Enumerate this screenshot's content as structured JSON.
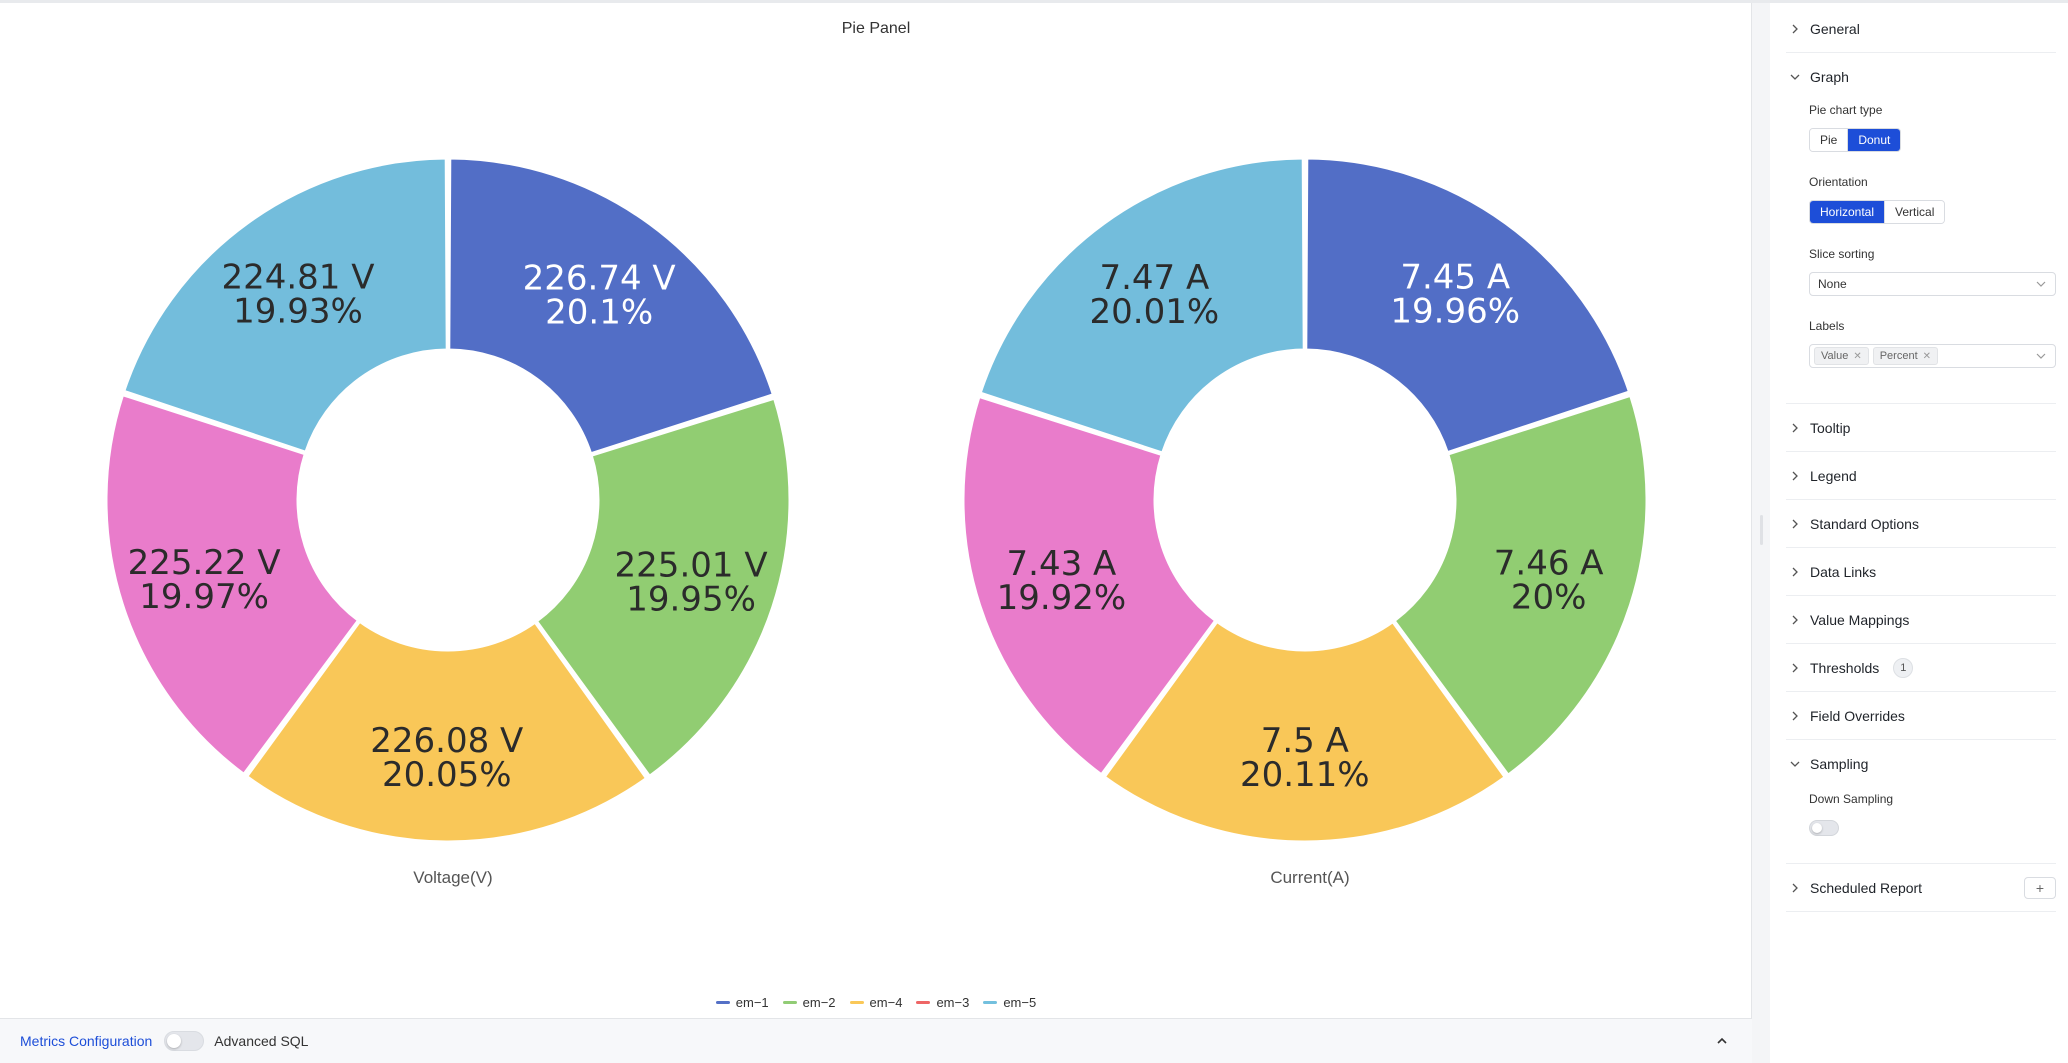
{
  "panel": {
    "title": "Pie Panel",
    "legend": [
      {
        "name": "em−1",
        "color": "#5470c6"
      },
      {
        "name": "em−2",
        "color": "#91cc75"
      },
      {
        "name": "em−4",
        "color": "#fac858"
      },
      {
        "name": "em−3",
        "color": "#ee6666"
      },
      {
        "name": "em−5",
        "color": "#73c0de"
      }
    ]
  },
  "chart_data": [
    {
      "type": "pie",
      "variant": "donut",
      "title": "Voltage(V)",
      "slices": [
        {
          "name": "em−1",
          "value": 226.74,
          "label_value": "226.74 V",
          "label_percent": "20.1%",
          "color": "#526ec6"
        },
        {
          "name": "em−2",
          "value": 225.01,
          "label_value": "225.01 V",
          "label_percent": "19.95%",
          "color": "#91cd72"
        },
        {
          "name": "em−4",
          "value": 226.08,
          "label_value": "226.08 V",
          "label_percent": "20.05%",
          "color": "#f9c758"
        },
        {
          "name": "em−3",
          "value": 225.22,
          "label_value": "225.22 V",
          "label_percent": "19.97%",
          "color": "#e97ccb"
        },
        {
          "name": "em−5",
          "value": 224.81,
          "label_value": "224.81 V",
          "label_percent": "19.93%",
          "color": "#73bddc"
        }
      ]
    },
    {
      "type": "pie",
      "variant": "donut",
      "title": "Current(A)",
      "slices": [
        {
          "name": "em−1",
          "value": 7.45,
          "label_value": "7.45 A",
          "label_percent": "19.96%",
          "color": "#526ec6"
        },
        {
          "name": "em−2",
          "value": 7.46,
          "label_value": "7.46 A",
          "label_percent": "20%",
          "color": "#91cd72"
        },
        {
          "name": "em−4",
          "value": 7.5,
          "label_value": "7.5 A",
          "label_percent": "20.11%",
          "color": "#f9c758"
        },
        {
          "name": "em−3",
          "value": 7.43,
          "label_value": "7.43 A",
          "label_percent": "19.92%",
          "color": "#e97ccb"
        },
        {
          "name": "em−5",
          "value": 7.47,
          "label_value": "7.47 A",
          "label_percent": "20.01%",
          "color": "#73bddc"
        }
      ]
    }
  ],
  "bottombar": {
    "metrics_label": "Metrics Configuration",
    "advanced_label": "Advanced SQL"
  },
  "sidebar": {
    "general": "General",
    "graph": "Graph",
    "pie_chart_type_label": "Pie chart type",
    "pie_option": "Pie",
    "donut_option": "Donut",
    "orientation_label": "Orientation",
    "horizontal_option": "Horizontal",
    "vertical_option": "Vertical",
    "slice_sorting_label": "Slice sorting",
    "slice_sorting_value": "None",
    "labels_label": "Labels",
    "labels_tags": [
      "Value",
      "Percent"
    ],
    "tooltip": "Tooltip",
    "legend": "Legend",
    "standard_options": "Standard Options",
    "data_links": "Data Links",
    "value_mappings": "Value Mappings",
    "thresholds": "Thresholds",
    "thresholds_count": "1",
    "field_overrides": "Field Overrides",
    "sampling": "Sampling",
    "down_sampling_label": "Down Sampling",
    "scheduled_report": "Scheduled Report",
    "accent_color": "#1d4ed8"
  }
}
